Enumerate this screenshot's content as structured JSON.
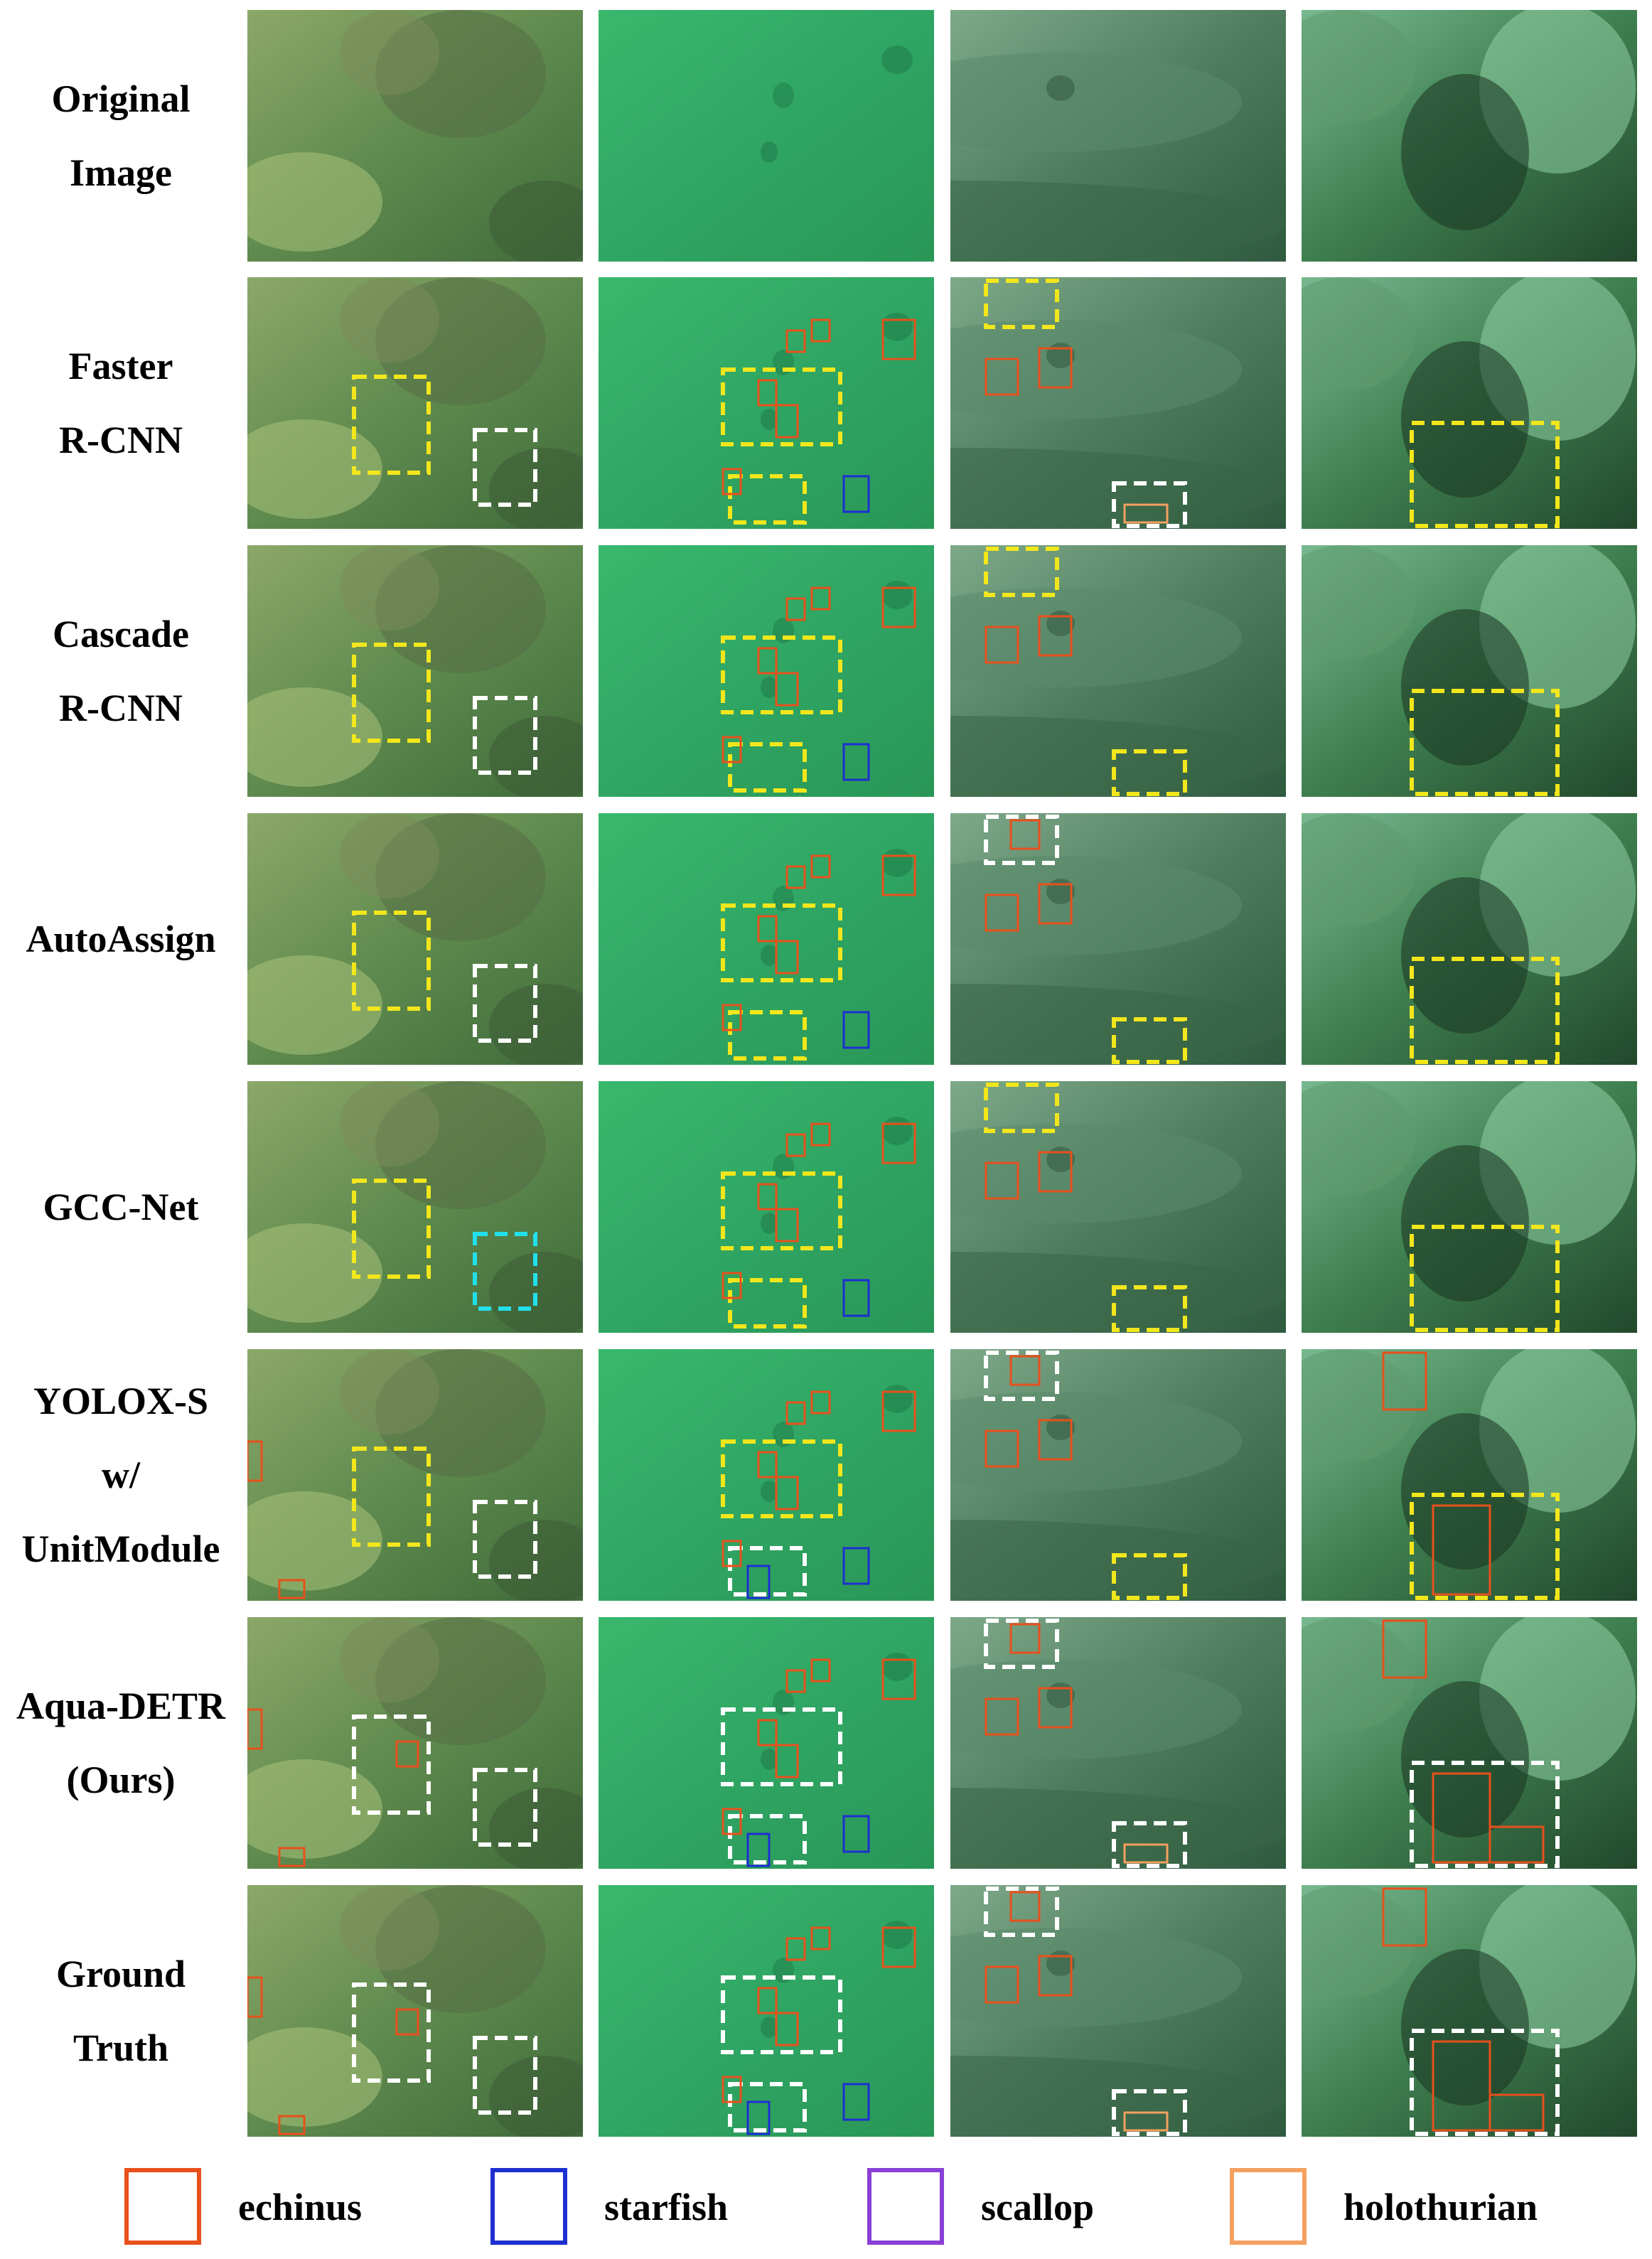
{
  "rows": [
    {
      "label_lines": [
        "Original",
        "Image"
      ]
    },
    {
      "label_lines": [
        "Faster",
        "R-CNN"
      ]
    },
    {
      "label_lines": [
        "Cascade",
        "R-CNN"
      ]
    },
    {
      "label_lines": [
        "AutoAssign"
      ]
    },
    {
      "label_lines": [
        "GCC-Net"
      ]
    },
    {
      "label_lines": [
        "YOLOX-S",
        "w/",
        "UnitModule"
      ]
    },
    {
      "label_lines": [
        "Aqua-DETR",
        "(Ours)"
      ]
    },
    {
      "label_lines": [
        "Ground",
        "Truth"
      ]
    }
  ],
  "legend": [
    {
      "label": "echinus",
      "color": "#e8501c"
    },
    {
      "label": "starfish",
      "color": "#1e2fd0"
    },
    {
      "label": "scallop",
      "color": "#8a3fd6"
    },
    {
      "label": "holothurian",
      "color": "#f4a060"
    }
  ],
  "colors": {
    "highlight_yellow": "#f2e61c",
    "highlight_white": "#ffffff",
    "highlight_cyan": "#22e0ea",
    "echinus": "#e8501c",
    "starfish": "#1e2fd0",
    "holothurian": "#f4a060"
  }
}
